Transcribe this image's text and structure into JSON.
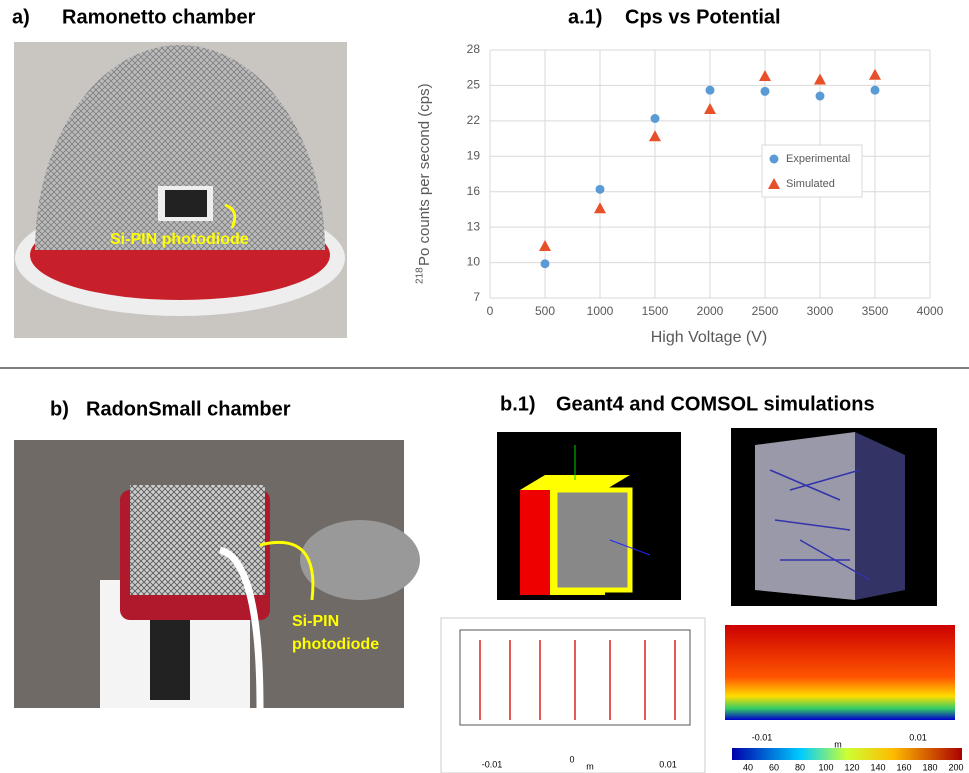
{
  "panels": {
    "a": {
      "label": "a)",
      "title": "Ramonetto chamber",
      "annotation": "Si-PIN photodiode"
    },
    "b": {
      "label": "b)",
      "title": "RadonSmall chamber",
      "annotation": [
        "Si-PIN",
        "photodiode"
      ]
    },
    "b1": {
      "label": "b.1)",
      "title": "Geant4 and COMSOL simulations",
      "left_axis": [
        "-0.01",
        "0",
        "m",
        "0.01"
      ],
      "right_axis": [
        "-0.01",
        "m",
        "0.01"
      ],
      "colorbar_ticks": [
        "40",
        "60",
        "80",
        "100",
        "120",
        "140",
        "160",
        "180",
        "200"
      ]
    }
  },
  "chart_data": {
    "type": "scatter",
    "label": "a.1)",
    "title": "Cps vs Potential",
    "xlabel": "High Voltage (V)",
    "ylabel_sup": "218",
    "ylabel": "Po counts per second (cps)",
    "x": [
      500,
      1000,
      1500,
      2000,
      2500,
      3000,
      3500
    ],
    "series": [
      {
        "name": "Experimental",
        "color": "#5b9bd5",
        "marker": "circle",
        "values": [
          9.9,
          16.2,
          22.2,
          24.6,
          24.5,
          24.1,
          24.6
        ]
      },
      {
        "name": "Simulated",
        "color": "#e8502a",
        "marker": "triangle",
        "values": [
          11.4,
          14.6,
          20.7,
          23.0,
          25.8,
          25.5,
          25.9
        ]
      }
    ],
    "xlim": [
      0,
      4000
    ],
    "xticks": [
      0,
      500,
      1000,
      1500,
      2000,
      2500,
      3000,
      3500,
      4000
    ],
    "ylim": [
      7,
      28
    ],
    "yticks": [
      7,
      10,
      13,
      16,
      19,
      22,
      25,
      28
    ],
    "grid": true,
    "legend": "right"
  }
}
